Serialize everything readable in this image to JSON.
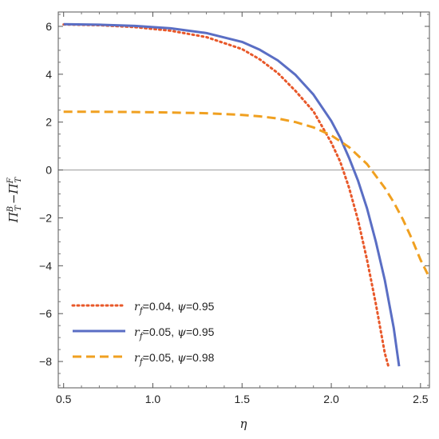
{
  "chart_data": {
    "type": "line",
    "title": "",
    "xlabel": "η",
    "ylabel": {
      "base": "Π",
      "sup1": "B",
      "sub1": "T",
      "minus": "−",
      "base2": "Π",
      "sup2": "F",
      "sub2": "T"
    },
    "xlim": [
      0.47,
      2.55
    ],
    "ylim": [
      -9.1,
      6.6
    ],
    "xticks": [
      0.5,
      1.0,
      1.5,
      2.0,
      2.5
    ],
    "xtick_labels": [
      "0.5",
      "1.0",
      "1.5",
      "2.0",
      "2.5"
    ],
    "yticks": [
      -8,
      -6,
      -4,
      -2,
      0,
      2,
      4,
      6
    ],
    "ytick_labels": [
      "−8",
      "−6",
      "−4",
      "−2",
      "0",
      "2",
      "4",
      "6"
    ],
    "reference_line_y": 0,
    "grid": false,
    "legend_position": "bottom-left",
    "series": [
      {
        "label_parts": {
          "a": "r",
          "sub": "f",
          "b": "=0.04, ",
          "c": "ψ",
          "d": "=0.95"
        },
        "color": "#e8582a",
        "style": "dotted",
        "x": [
          0.5,
          0.7,
          0.9,
          1.1,
          1.3,
          1.5,
          1.6,
          1.7,
          1.8,
          1.9,
          2.0,
          2.05,
          2.1,
          2.15,
          2.2,
          2.25,
          2.3,
          2.32
        ],
        "y": [
          6.08,
          6.05,
          5.97,
          5.82,
          5.55,
          5.05,
          4.62,
          4.05,
          3.3,
          2.45,
          1.15,
          0.35,
          -0.75,
          -2.1,
          -3.75,
          -5.6,
          -7.65,
          -8.2
        ]
      },
      {
        "label_parts": {
          "a": "r",
          "sub": "f",
          "b": "=0.05, ",
          "c": "ψ",
          "d": "=0.95"
        },
        "color": "#5a6ec4",
        "style": "solid",
        "x": [
          0.5,
          0.7,
          0.9,
          1.1,
          1.3,
          1.5,
          1.6,
          1.7,
          1.8,
          1.9,
          2.0,
          2.05,
          2.1,
          2.15,
          2.2,
          2.25,
          2.3,
          2.35,
          2.38
        ],
        "y": [
          6.09,
          6.07,
          6.02,
          5.92,
          5.72,
          5.35,
          5.02,
          4.58,
          3.97,
          3.15,
          2.05,
          1.35,
          0.5,
          -0.45,
          -1.6,
          -3.0,
          -4.6,
          -6.6,
          -8.2
        ]
      },
      {
        "label_parts": {
          "a": "r",
          "sub": "f",
          "b": "=0.05, ",
          "c": "ψ",
          "d": "=0.98"
        },
        "color": "#f0a020",
        "style": "dashed",
        "x": [
          0.5,
          0.7,
          0.9,
          1.1,
          1.3,
          1.5,
          1.6,
          1.7,
          1.8,
          1.9,
          2.0,
          2.1,
          2.2,
          2.3,
          2.35,
          2.4,
          2.45,
          2.5,
          2.54
        ],
        "y": [
          2.43,
          2.43,
          2.42,
          2.4,
          2.37,
          2.3,
          2.24,
          2.15,
          2.0,
          1.78,
          1.45,
          0.95,
          0.25,
          -0.75,
          -1.35,
          -2.05,
          -2.85,
          -3.75,
          -4.35
        ]
      }
    ]
  }
}
